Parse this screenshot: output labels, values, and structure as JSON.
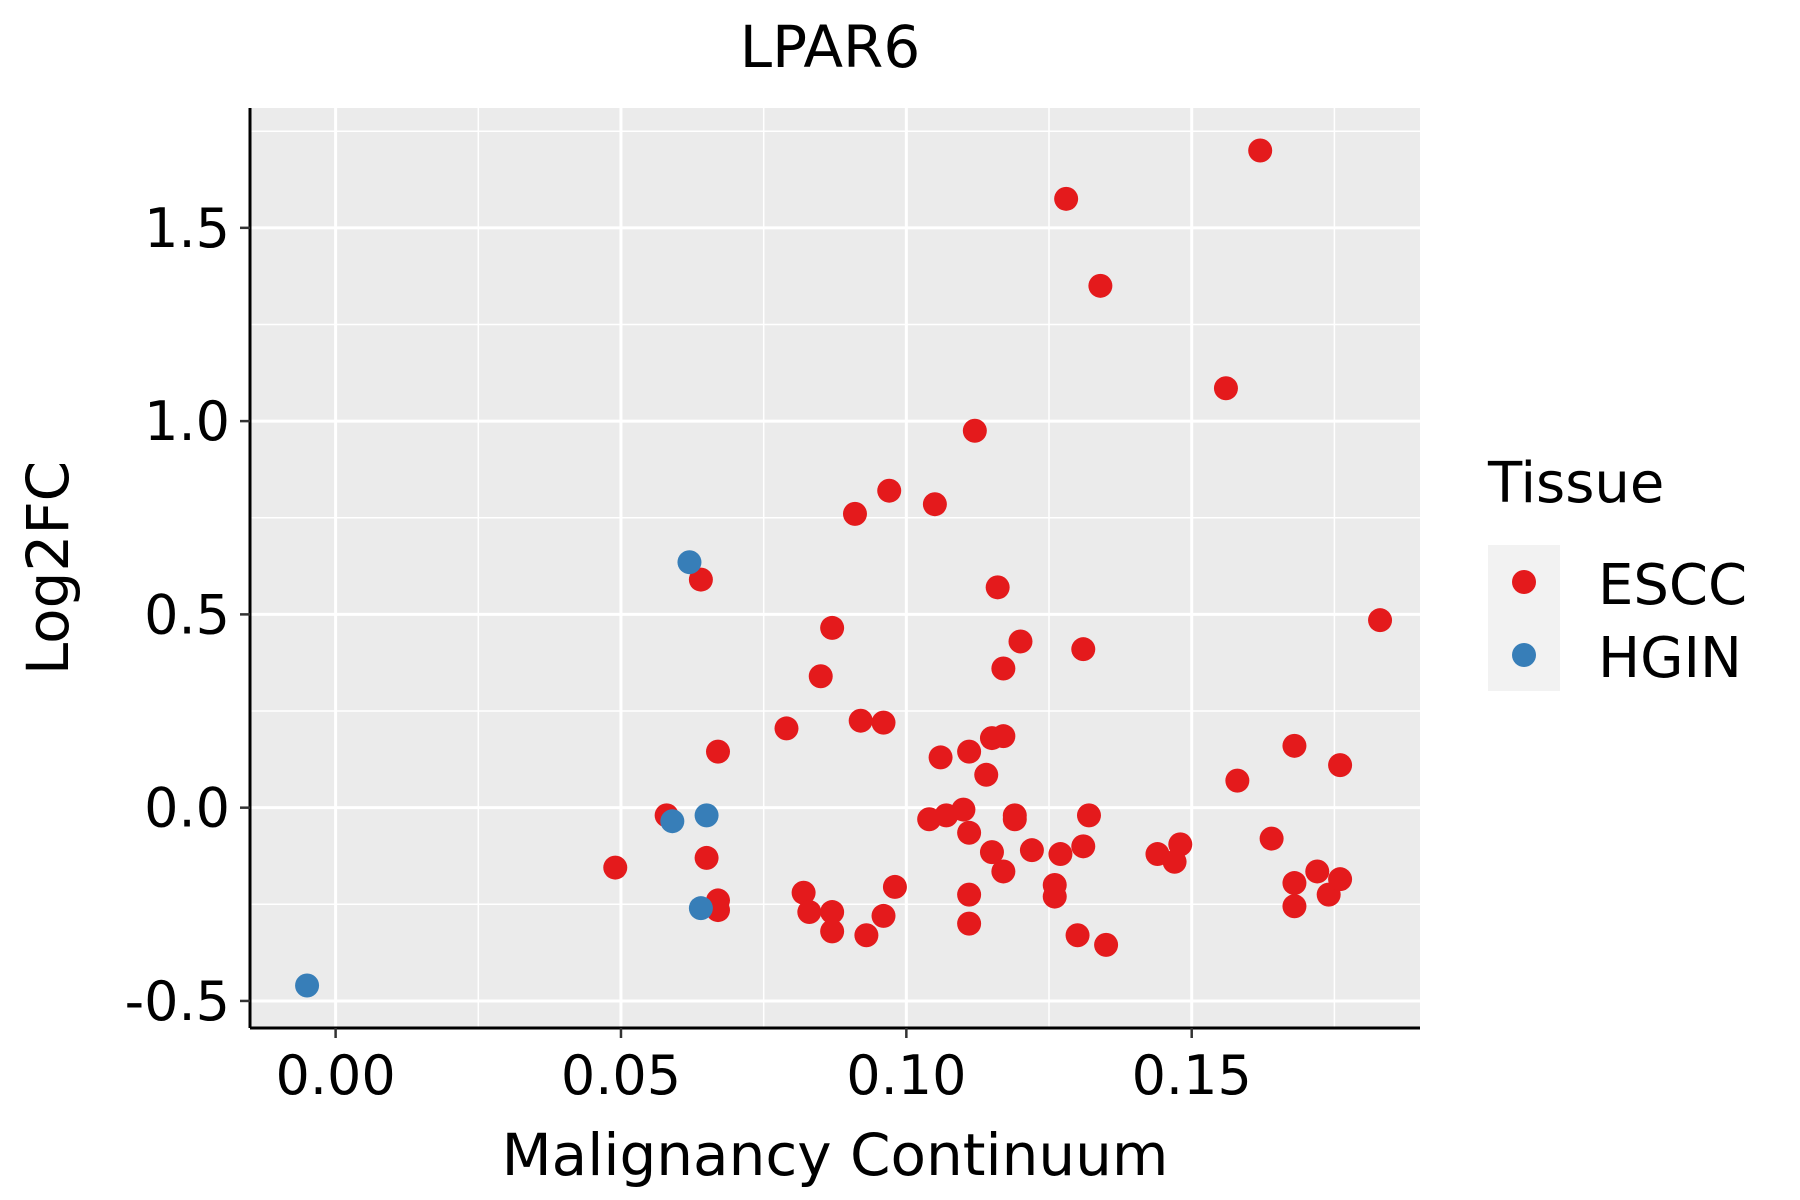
{
  "chart_data": {
    "type": "scatter",
    "title": "LPAR6",
    "xlabel": "Malignancy Continuum",
    "ylabel": "Log2FC",
    "xlim": [
      -0.015,
      0.19
    ],
    "ylim": [
      -0.57,
      1.81
    ],
    "x_ticks": [
      0.0,
      0.05,
      0.1,
      0.15
    ],
    "x_tick_labels": [
      "0.00",
      "0.05",
      "0.10",
      "0.15"
    ],
    "y_ticks": [
      -0.5,
      0.0,
      0.5,
      1.0,
      1.5
    ],
    "y_tick_labels": [
      "-0.5",
      "0.0",
      "0.5",
      "1.0",
      "1.5"
    ],
    "grid": true,
    "legend": {
      "title": "Tissue",
      "placement": "right",
      "entries": [
        {
          "name": "ESCC",
          "color": "#E41A1C"
        },
        {
          "name": "HGIN",
          "color": "#377EB8"
        }
      ]
    },
    "series": [
      {
        "name": "ESCC",
        "color": "#E41A1C",
        "points": [
          [
            0.049,
            -0.155
          ],
          [
            0.058,
            -0.02
          ],
          [
            0.064,
            0.59
          ],
          [
            0.065,
            -0.13
          ],
          [
            0.067,
            0.145
          ],
          [
            0.067,
            -0.24
          ],
          [
            0.067,
            -0.265
          ],
          [
            0.079,
            0.205
          ],
          [
            0.082,
            -0.22
          ],
          [
            0.083,
            -0.27
          ],
          [
            0.085,
            0.34
          ],
          [
            0.087,
            0.465
          ],
          [
            0.087,
            -0.27
          ],
          [
            0.087,
            -0.32
          ],
          [
            0.091,
            0.76
          ],
          [
            0.092,
            0.225
          ],
          [
            0.093,
            -0.33
          ],
          [
            0.096,
            -0.28
          ],
          [
            0.096,
            0.22
          ],
          [
            0.097,
            0.82
          ],
          [
            0.098,
            -0.205
          ],
          [
            0.104,
            -0.03
          ],
          [
            0.105,
            0.785
          ],
          [
            0.106,
            0.13
          ],
          [
            0.107,
            -0.02
          ],
          [
            0.11,
            -0.005
          ],
          [
            0.111,
            -0.3
          ],
          [
            0.111,
            -0.225
          ],
          [
            0.111,
            -0.065
          ],
          [
            0.111,
            0.145
          ],
          [
            0.112,
            0.975
          ],
          [
            0.114,
            0.085
          ],
          [
            0.115,
            -0.115
          ],
          [
            0.115,
            0.18
          ],
          [
            0.116,
            0.57
          ],
          [
            0.117,
            0.185
          ],
          [
            0.117,
            -0.165
          ],
          [
            0.117,
            0.36
          ],
          [
            0.119,
            -0.02
          ],
          [
            0.119,
            -0.03
          ],
          [
            0.12,
            0.43
          ],
          [
            0.122,
            -0.11
          ],
          [
            0.126,
            -0.23
          ],
          [
            0.126,
            -0.2
          ],
          [
            0.127,
            -0.12
          ],
          [
            0.128,
            1.575
          ],
          [
            0.13,
            -0.33
          ],
          [
            0.131,
            -0.1
          ],
          [
            0.131,
            0.41
          ],
          [
            0.132,
            -0.02
          ],
          [
            0.134,
            1.35
          ],
          [
            0.135,
            -0.355
          ],
          [
            0.144,
            -0.12
          ],
          [
            0.147,
            -0.14
          ],
          [
            0.148,
            -0.095
          ],
          [
            0.156,
            1.085
          ],
          [
            0.158,
            0.07
          ],
          [
            0.162,
            1.7
          ],
          [
            0.164,
            -0.08
          ],
          [
            0.168,
            -0.195
          ],
          [
            0.168,
            -0.255
          ],
          [
            0.168,
            0.16
          ],
          [
            0.172,
            -0.165
          ],
          [
            0.174,
            -0.225
          ],
          [
            0.176,
            -0.185
          ],
          [
            0.176,
            0.11
          ],
          [
            0.183,
            0.485
          ]
        ]
      },
      {
        "name": "HGIN",
        "color": "#377EB8",
        "points": [
          [
            -0.005,
            -0.46
          ],
          [
            0.059,
            -0.035
          ],
          [
            0.062,
            0.635
          ],
          [
            0.064,
            -0.26
          ],
          [
            0.065,
            -0.02
          ]
        ]
      }
    ]
  }
}
